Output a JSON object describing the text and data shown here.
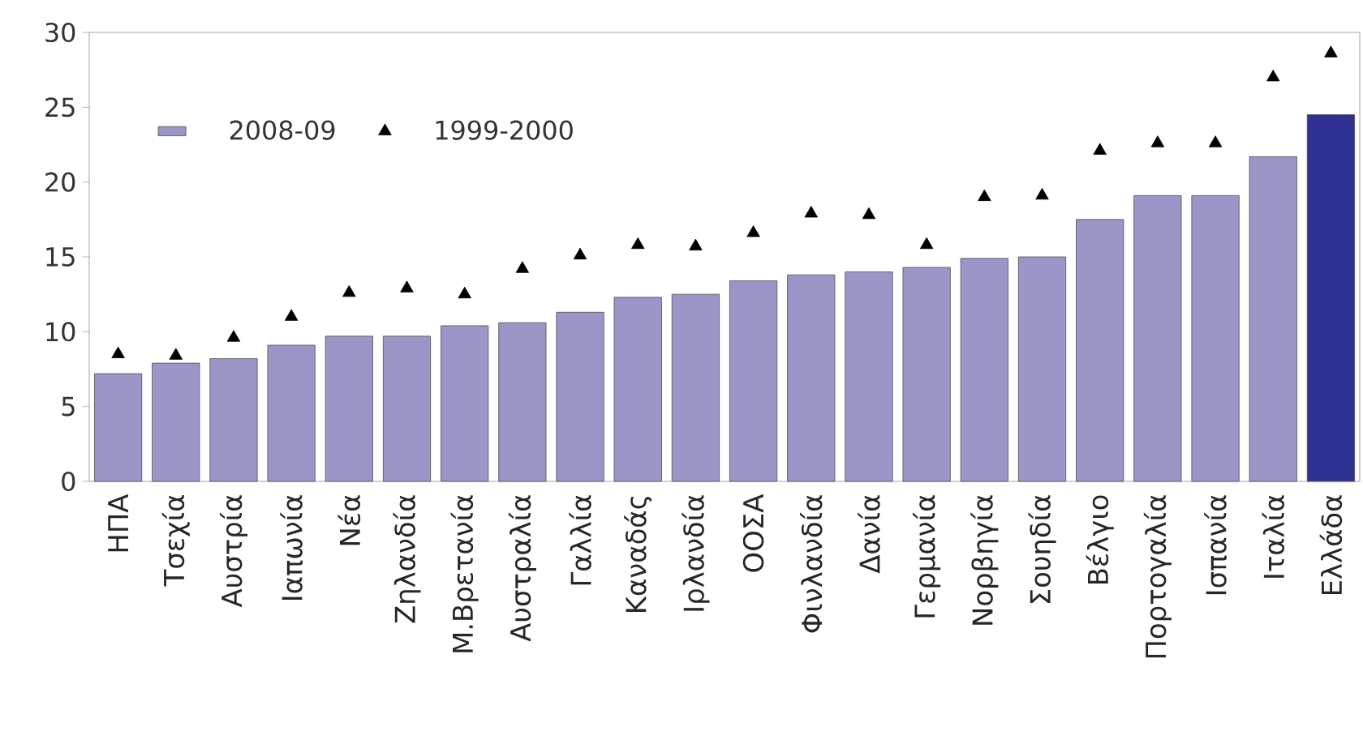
{
  "chart_data": {
    "type": "bar",
    "categories": [
      "ΗΠΑ",
      "Τσεχία",
      "Αυστρία",
      "Ιαπωνία",
      "Νέα",
      "Ζηλανδία",
      "Μ.Βρετανία",
      "Αυστραλία",
      "Γαλλία",
      "Καναδάς",
      "Ιρλανδία",
      "ΟΟΣΑ",
      "Φινλανδία",
      "Δανία",
      "Γερμανία",
      "Νορβηγία",
      "Σουηδία",
      "Βέλγιο",
      "Πορτογαλία",
      "Ισπανία",
      "Ιταλία",
      "Ελλάδα"
    ],
    "series": [
      {
        "name": "2008-09",
        "type": "bar",
        "color": "#9b96c8",
        "colors": [
          "#9b96c8",
          "#9b96c8",
          "#9b96c8",
          "#9b96c8",
          "#9b96c8",
          "#9b96c8",
          "#9b96c8",
          "#9b96c8",
          "#9b96c8",
          "#9b96c8",
          "#9b96c8",
          "#9b96c8",
          "#9b96c8",
          "#9b96c8",
          "#9b96c8",
          "#9b96c8",
          "#9b96c8",
          "#9b96c8",
          "#9b96c8",
          "#9b96c8",
          "#9b96c8",
          "#2e3192"
        ],
        "values": [
          7.2,
          7.9,
          8.2,
          9.1,
          9.7,
          9.7,
          10.4,
          10.6,
          11.3,
          12.3,
          12.5,
          13.4,
          13.8,
          14.0,
          14.3,
          14.9,
          15.0,
          17.5,
          19.1,
          19.1,
          21.7,
          24.5
        ]
      },
      {
        "name": "1999-2000",
        "type": "scatter",
        "color": "#000000",
        "marker": "triangle",
        "values": [
          8.5,
          8.4,
          9.6,
          11.0,
          12.6,
          12.9,
          12.5,
          14.2,
          15.1,
          15.8,
          15.7,
          16.6,
          17.9,
          17.8,
          15.8,
          19.0,
          19.1,
          22.1,
          22.6,
          22.6,
          27.0,
          28.6
        ]
      }
    ],
    "ylim": [
      0,
      30
    ],
    "yticks": [
      0,
      5,
      10,
      15,
      20,
      25,
      30
    ],
    "legend": "top left"
  }
}
